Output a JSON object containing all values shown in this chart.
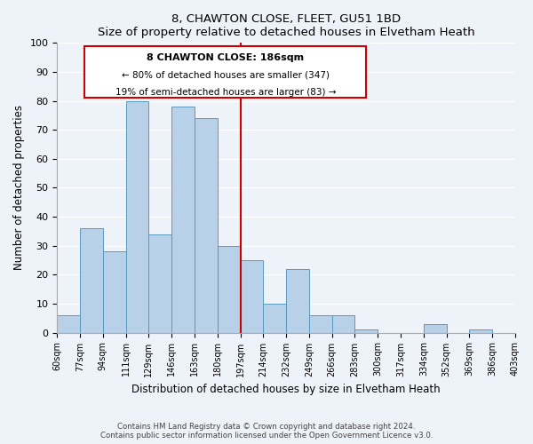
{
  "title": "8, CHAWTON CLOSE, FLEET, GU51 1BD",
  "subtitle": "Size of property relative to detached houses in Elvetham Heath",
  "xlabel": "Distribution of detached houses by size in Elvetham Heath",
  "ylabel": "Number of detached properties",
  "bin_edges": [
    "60sqm",
    "77sqm",
    "94sqm",
    "111sqm",
    "129sqm",
    "146sqm",
    "163sqm",
    "180sqm",
    "197sqm",
    "214sqm",
    "232sqm",
    "249sqm",
    "266sqm",
    "283sqm",
    "300sqm",
    "317sqm",
    "334sqm",
    "352sqm",
    "369sqm",
    "386sqm",
    "403sqm"
  ],
  "values": [
    6,
    36,
    28,
    80,
    34,
    78,
    74,
    30,
    25,
    10,
    22,
    6,
    6,
    1,
    0,
    0,
    3,
    0,
    1,
    0
  ],
  "bar_color": "#b8d0e8",
  "bar_edge_color": "#5a9abf",
  "marker_label": "8 CHAWTON CLOSE: 186sqm",
  "annotation_line1": "← 80% of detached houses are smaller (347)",
  "annotation_line2": "19% of semi-detached houses are larger (83) →",
  "vline_color": "#cc0000",
  "box_edge_color": "#cc0000",
  "ylim": [
    0,
    100
  ],
  "yticks": [
    0,
    10,
    20,
    30,
    40,
    50,
    60,
    70,
    80,
    90,
    100
  ],
  "footnote1": "Contains HM Land Registry data © Crown copyright and database right 2024.",
  "footnote2": "Contains public sector information licensed under the Open Government Licence v3.0.",
  "background_color": "#eef2f9",
  "plot_background": "#eef2f9"
}
